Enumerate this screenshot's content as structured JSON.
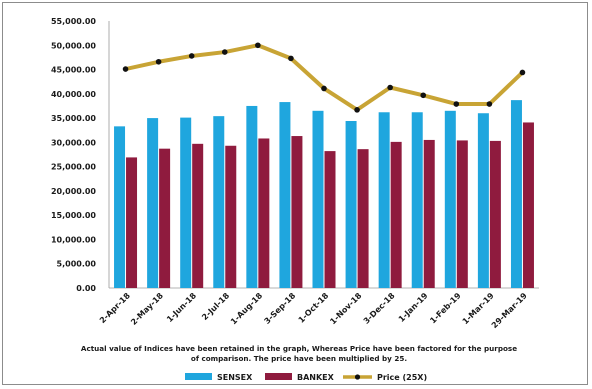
{
  "chart_data": {
    "type": "bar",
    "categories": [
      "2-Apr-18",
      "2-May-18",
      "1-Jun-18",
      "2-Jul-18",
      "1-Aug-18",
      "3-Sep-18",
      "1-Oct-18",
      "1-Nov-18",
      "3-Dec-18",
      "1-Jan-19",
      "1-Feb-19",
      "1-Mar-19",
      "29-Mar-19"
    ],
    "series": [
      {
        "name": "SENSEX",
        "kind": "bar",
        "color": "#1fa6de",
        "values": [
          33300,
          35000,
          35100,
          35400,
          37500,
          38300,
          36500,
          34400,
          36200,
          36200,
          36500,
          36000,
          38700
        ]
      },
      {
        "name": "BANKEX",
        "kind": "bar",
        "color": "#8f1b3e",
        "values": [
          26900,
          28700,
          29700,
          29300,
          30800,
          31300,
          28200,
          28600,
          30100,
          30500,
          30400,
          30300,
          34100
        ]
      },
      {
        "name": "Price (25X)",
        "kind": "line",
        "color": "#c8a435",
        "values": [
          45100,
          46600,
          47800,
          48600,
          50000,
          47300,
          41100,
          36700,
          41300,
          39700,
          37900,
          37900,
          44400
        ]
      }
    ],
    "yticks": [
      "55,000.00",
      "50,000.00",
      "45,000.00",
      "40,000.00",
      "35,000.00",
      "30,000.00",
      "25,000.00",
      "20,000.00",
      "15,000.00",
      "10,000.00",
      "5,000.00",
      "0.00"
    ],
    "ylim": [
      0,
      55000
    ],
    "grid": false,
    "legend_position": "bottom",
    "annotation": [
      "Actual value of Indices have been retained in the graph, Whereas Price have been factored for the purpose",
      "of comparison. The price have been multiplied by 25."
    ]
  }
}
